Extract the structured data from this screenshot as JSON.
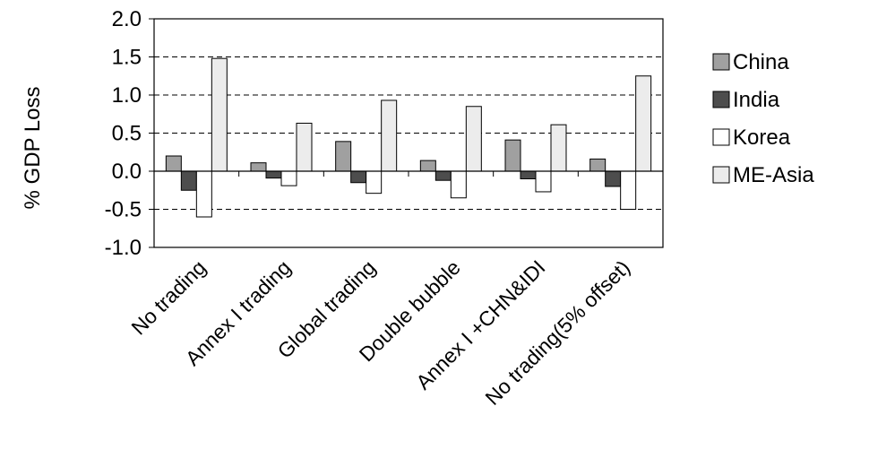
{
  "chart_data": {
    "type": "bar",
    "ylabel": "% GDP Loss",
    "ylim": [
      -1.0,
      2.0
    ],
    "yticks": [
      "2.0",
      "1.5",
      "1.0",
      "0.5",
      "0.0",
      "-0.5",
      "-1.0"
    ],
    "ytick_values": [
      2.0,
      1.5,
      1.0,
      0.5,
      0.0,
      -0.5,
      -1.0
    ],
    "grid": "dashed horizontal",
    "legend_position": "right",
    "categories": [
      "No trading",
      "Annex I trading",
      "Global trading",
      "Double bubble",
      "Annex I +CHN&IDI",
      "No trading(5% offset)"
    ],
    "series": [
      {
        "name": "China",
        "color": "#a0a0a0",
        "values": [
          0.2,
          0.11,
          0.39,
          0.14,
          0.41,
          0.16
        ]
      },
      {
        "name": "India",
        "color": "#4d4d4d",
        "values": [
          -0.25,
          -0.09,
          -0.15,
          -0.12,
          -0.1,
          -0.2
        ]
      },
      {
        "name": "Korea",
        "color": "#ffffff",
        "values": [
          -0.6,
          -0.19,
          -0.29,
          -0.35,
          -0.27,
          -0.5
        ]
      },
      {
        "name": "ME-Asia",
        "color": "#ececec",
        "values": [
          1.48,
          0.63,
          0.93,
          0.85,
          0.61,
          1.25
        ]
      }
    ]
  }
}
